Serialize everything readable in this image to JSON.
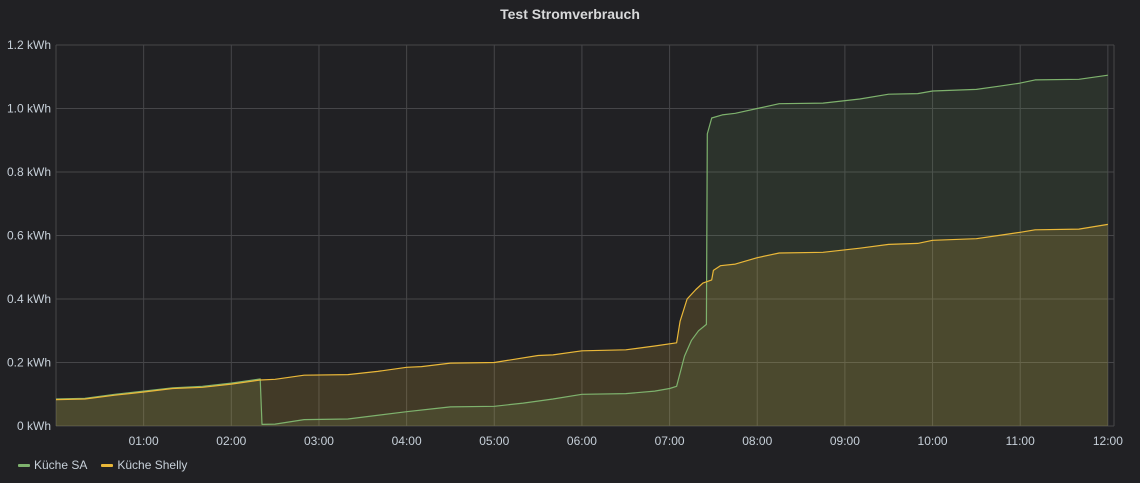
{
  "panel": {
    "title": "Test Stromverbrauch"
  },
  "colors": {
    "background": "#212124",
    "grid": "#464649",
    "axis_text": "#c7d0d9",
    "title_text": "#d8d9da"
  },
  "legend": {
    "items": [
      {
        "label": "Küche SA",
        "color": "#7eb26d"
      },
      {
        "label": "Küche Shelly",
        "color": "#eab839"
      }
    ]
  },
  "chart_data": {
    "type": "area",
    "title": "Test Stromverbrauch",
    "xlabel": "",
    "ylabel": "",
    "x_range": [
      0.0,
      12.07
    ],
    "ylim": [
      0,
      1.2
    ],
    "y_ticks": [
      0,
      0.2,
      0.4,
      0.6,
      0.8,
      1.0,
      1.2
    ],
    "y_tick_labels": [
      "0 kWh",
      "0.2 kWh",
      "0.4 kWh",
      "0.6 kWh",
      "0.8 kWh",
      "1.0 kWh",
      "1.2 kWh"
    ],
    "x_ticks": [
      1,
      2,
      3,
      4,
      5,
      6,
      7,
      8,
      9,
      10,
      11,
      12
    ],
    "x_tick_labels": [
      "01:00",
      "02:00",
      "03:00",
      "04:00",
      "05:00",
      "06:00",
      "07:00",
      "08:00",
      "09:00",
      "10:00",
      "11:00",
      "12:00"
    ],
    "grid": true,
    "legend_position": "bottom-left",
    "series": [
      {
        "name": "Küche SA",
        "color": "#7eb26d",
        "points": [
          [
            0.0,
            0.085
          ],
          [
            0.33,
            0.087
          ],
          [
            0.67,
            0.1
          ],
          [
            1.0,
            0.11
          ],
          [
            1.33,
            0.12
          ],
          [
            1.67,
            0.125
          ],
          [
            2.0,
            0.135
          ],
          [
            2.33,
            0.148
          ],
          [
            2.35,
            0.005
          ],
          [
            2.5,
            0.006
          ],
          [
            2.83,
            0.02
          ],
          [
            3.33,
            0.022
          ],
          [
            4.0,
            0.045
          ],
          [
            4.33,
            0.055
          ],
          [
            4.5,
            0.06
          ],
          [
            5.0,
            0.062
          ],
          [
            5.33,
            0.072
          ],
          [
            5.67,
            0.085
          ],
          [
            6.0,
            0.1
          ],
          [
            6.5,
            0.102
          ],
          [
            6.83,
            0.11
          ],
          [
            7.0,
            0.118
          ],
          [
            7.08,
            0.125
          ],
          [
            7.17,
            0.22
          ],
          [
            7.25,
            0.27
          ],
          [
            7.33,
            0.3
          ],
          [
            7.42,
            0.32
          ],
          [
            7.43,
            0.92
          ],
          [
            7.48,
            0.97
          ],
          [
            7.6,
            0.98
          ],
          [
            7.75,
            0.985
          ],
          [
            8.0,
            1.0
          ],
          [
            8.25,
            1.015
          ],
          [
            8.75,
            1.017
          ],
          [
            9.17,
            1.03
          ],
          [
            9.5,
            1.045
          ],
          [
            9.83,
            1.047
          ],
          [
            10.0,
            1.055
          ],
          [
            10.5,
            1.06
          ],
          [
            10.75,
            1.07
          ],
          [
            11.0,
            1.08
          ],
          [
            11.17,
            1.09
          ],
          [
            11.67,
            1.092
          ],
          [
            12.0,
            1.105
          ]
        ]
      },
      {
        "name": "Küche Shelly",
        "color": "#eab839",
        "points": [
          [
            0.0,
            0.083
          ],
          [
            0.33,
            0.085
          ],
          [
            0.67,
            0.097
          ],
          [
            1.0,
            0.107
          ],
          [
            1.33,
            0.118
          ],
          [
            1.67,
            0.122
          ],
          [
            2.0,
            0.132
          ],
          [
            2.33,
            0.145
          ],
          [
            2.5,
            0.147
          ],
          [
            2.83,
            0.16
          ],
          [
            3.33,
            0.162
          ],
          [
            3.67,
            0.172
          ],
          [
            4.0,
            0.185
          ],
          [
            4.17,
            0.187
          ],
          [
            4.5,
            0.198
          ],
          [
            5.0,
            0.2
          ],
          [
            5.5,
            0.222
          ],
          [
            5.67,
            0.224
          ],
          [
            6.0,
            0.237
          ],
          [
            6.5,
            0.24
          ],
          [
            6.83,
            0.252
          ],
          [
            7.08,
            0.262
          ],
          [
            7.12,
            0.33
          ],
          [
            7.2,
            0.4
          ],
          [
            7.3,
            0.43
          ],
          [
            7.38,
            0.45
          ],
          [
            7.48,
            0.46
          ],
          [
            7.5,
            0.49
          ],
          [
            7.58,
            0.505
          ],
          [
            7.75,
            0.51
          ],
          [
            8.0,
            0.53
          ],
          [
            8.25,
            0.545
          ],
          [
            8.75,
            0.547
          ],
          [
            9.17,
            0.56
          ],
          [
            9.5,
            0.572
          ],
          [
            9.83,
            0.575
          ],
          [
            10.0,
            0.585
          ],
          [
            10.5,
            0.59
          ],
          [
            10.75,
            0.6
          ],
          [
            11.0,
            0.61
          ],
          [
            11.17,
            0.618
          ],
          [
            11.67,
            0.62
          ],
          [
            12.0,
            0.635
          ]
        ]
      }
    ]
  }
}
